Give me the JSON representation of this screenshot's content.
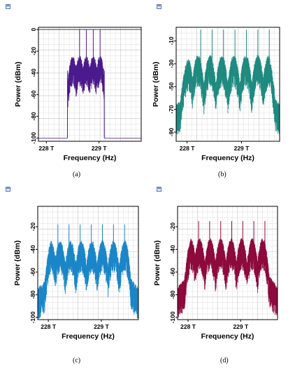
{
  "chart_data": [
    {
      "type": "line",
      "caption": "(a)",
      "xlabel": "Frequency (Hz)",
      "ylabel": "Power (dBm)",
      "x_ticks": [
        "228 T",
        "229 T"
      ],
      "x_tick_values": [
        228,
        229
      ],
      "xlim": [
        227.85,
        229.8
      ],
      "y_ticks": [
        "0",
        "-20",
        "-40",
        "-60",
        "-80",
        "-100"
      ],
      "y_tick_values": [
        0,
        -20,
        -40,
        -60,
        -80,
        -100
      ],
      "ylim": [
        -103,
        2
      ],
      "color": "#4B1A8C",
      "grid": true,
      "noise_floor": -100,
      "band": [
        228.4,
        229.1
      ],
      "comb_lines_x": [
        228.63,
        228.76,
        228.89,
        229.02
      ],
      "comb_line_level": 0,
      "lobe_centers": [
        228.5,
        228.63,
        228.76,
        228.89,
        229.02
      ],
      "lobe_peak": -30,
      "lobe_trough": -55,
      "series": [
        {
          "values_note": ""
        }
      ]
    },
    {
      "type": "line",
      "caption": "(b)",
      "xlabel": "Frequency (Hz)",
      "ylabel": "Power (dBm)",
      "x_ticks": [
        "228 T",
        "229 T"
      ],
      "x_tick_values": [
        228,
        229
      ],
      "xlim": [
        227.8,
        229.7
      ],
      "y_ticks": [
        "-10",
        "-30",
        "-50",
        "-70",
        "-90"
      ],
      "y_tick_values": [
        -10,
        -30,
        -50,
        -70,
        -90
      ],
      "ylim": [
        -98,
        2
      ],
      "color": "#1E8A80",
      "grid": true,
      "floor": -85,
      "comb_lines_x": [
        228.25,
        228.46,
        228.67,
        228.88,
        229.09,
        229.3,
        229.51
      ],
      "comb_line_level": 0,
      "lobe_centers": [
        228.0,
        228.2,
        228.42,
        228.64,
        228.86,
        229.08,
        229.3,
        229.5
      ],
      "lobe_peak": -28,
      "lobe_trough": -60
    },
    {
      "type": "line",
      "caption": "(c)",
      "xlabel": "Frequency (Hz)",
      "ylabel": "Power (dBm)",
      "x_ticks": [
        "228 T",
        "229 T"
      ],
      "x_tick_values": [
        228,
        229
      ],
      "xlim": [
        227.8,
        229.7
      ],
      "y_ticks": [
        "-20",
        "-40",
        "-60",
        "-80",
        "-100"
      ],
      "y_tick_values": [
        -20,
        -40,
        -60,
        -80,
        -100
      ],
      "ylim": [
        -102,
        -2
      ],
      "color": "#1A86C8",
      "grid": true,
      "floor": -95,
      "comb_lines_x": [
        228.18,
        228.39,
        228.6,
        228.81,
        229.02,
        229.23,
        229.44
      ],
      "comb_line_level": -18,
      "lobe_centers": [
        228.05,
        228.22,
        228.42,
        228.62,
        228.82,
        229.02,
        229.23,
        229.44
      ],
      "lobe_peak": -38,
      "lobe_trough": -68
    },
    {
      "type": "line",
      "caption": "(d)",
      "xlabel": "Frequency (Hz)",
      "ylabel": "Power (dBm)",
      "x_ticks": [
        "228 T",
        "229 T"
      ],
      "x_tick_values": [
        228,
        229
      ],
      "xlim": [
        227.8,
        229.7
      ],
      "y_ticks": [
        "-20",
        "-40",
        "-60",
        "-80",
        "-100"
      ],
      "y_tick_values": [
        -20,
        -40,
        -60,
        -80,
        -100
      ],
      "ylim": [
        -102,
        -2
      ],
      "color": "#8C0A3C",
      "grid": true,
      "floor": -95,
      "comb_lines_x": [
        228.2,
        228.41,
        228.62,
        228.83,
        229.04,
        229.25,
        229.46
      ],
      "comb_line_level": -15,
      "lobe_centers": [
        228.05,
        228.22,
        228.42,
        228.62,
        228.82,
        229.02,
        229.22,
        229.42
      ],
      "lobe_peak": -36,
      "lobe_trough": -66
    }
  ]
}
